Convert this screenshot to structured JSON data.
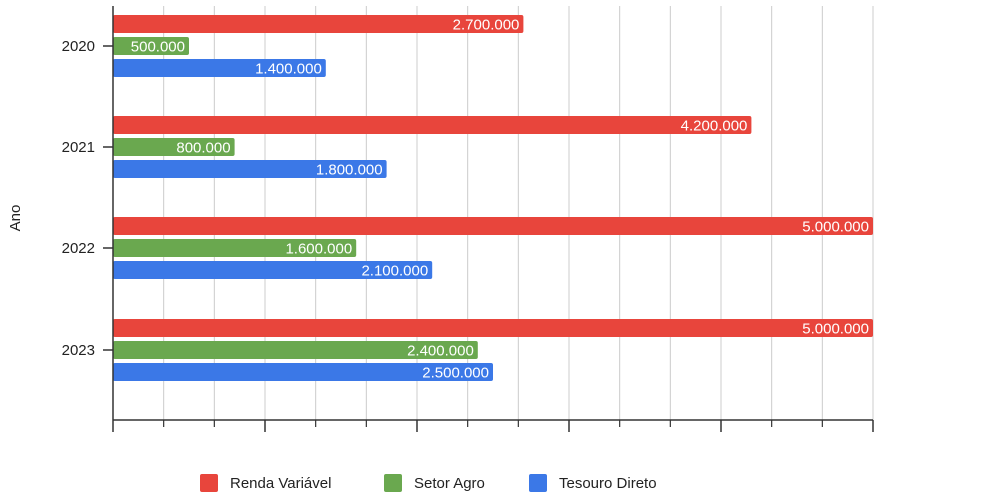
{
  "chart_data": {
    "type": "bar",
    "orientation": "horizontal",
    "title": "",
    "xlabel": "",
    "ylabel": "Ano",
    "categories": [
      "2020",
      "2021",
      "2022",
      "2023"
    ],
    "series": [
      {
        "name": "Renda Variável",
        "color": "#e8453c",
        "values": [
          2700000,
          4200000,
          5000000,
          5000000
        ],
        "labels": [
          "2.700.000",
          "4.200.000",
          "5.000.000",
          "5.000.000"
        ]
      },
      {
        "name": "Setor Agro",
        "color": "#6aa84f",
        "values": [
          500000,
          800000,
          1600000,
          2400000
        ],
        "labels": [
          "500.000",
          "800.000",
          "1.600.000",
          "2.400.000"
        ]
      },
      {
        "name": "Tesouro Direto",
        "color": "#3b78e7",
        "values": [
          1400000,
          1800000,
          2100000,
          2500000
        ],
        "labels": [
          "1.400.000",
          "1.800.000",
          "2.100.000",
          "2.500.000"
        ]
      }
    ],
    "xlim": [
      0,
      5000000
    ],
    "grid": true,
    "legend_position": "bottom"
  }
}
